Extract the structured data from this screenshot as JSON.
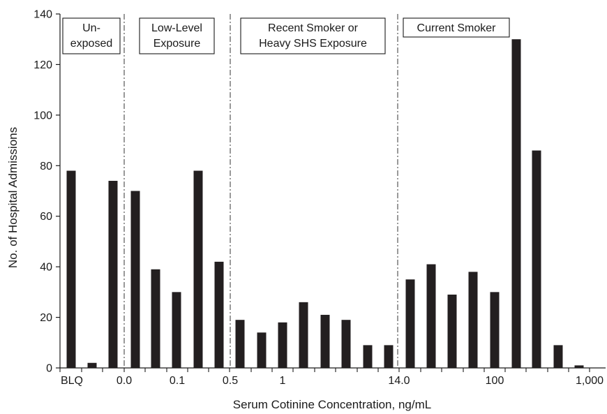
{
  "chart_data": {
    "type": "bar",
    "ylabel": "No. of Hospital Admissions",
    "xlabel": "Serum Cotinine Concentration, ng/mL",
    "ylim": [
      0,
      140
    ],
    "yticks": [
      0,
      20,
      40,
      60,
      80,
      100,
      120,
      140
    ],
    "values": [
      78,
      2,
      74,
      70,
      39,
      30,
      78,
      42,
      19,
      14,
      18,
      26,
      21,
      19,
      9,
      9,
      35,
      41,
      29,
      38,
      30,
      130,
      86,
      9,
      1
    ],
    "x_tick_labels": [
      "BLQ",
      "0.0",
      "0.1",
      "0.5",
      "1",
      "14.0",
      "100",
      "1,000"
    ],
    "regions": [
      {
        "label": [
          "Un-",
          "exposed"
        ]
      },
      {
        "label": [
          "Low-Level",
          "Exposure"
        ]
      },
      {
        "label": [
          "Recent Smoker or",
          "Heavy SHS Exposure"
        ]
      },
      {
        "label": [
          "Current Smoker"
        ]
      }
    ],
    "bar_color": "#231f20",
    "grid": false
  }
}
